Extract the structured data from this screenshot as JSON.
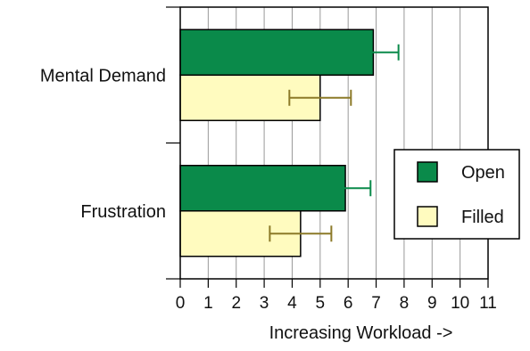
{
  "chart_data": {
    "type": "bar",
    "orientation": "horizontal",
    "categories": [
      "Mental Demand",
      "Frustration"
    ],
    "series": [
      {
        "name": "Open",
        "color": "#0a8a4a",
        "values": [
          6.9,
          5.9
        ],
        "error_low": [
          5.9,
          5.0
        ],
        "error_high": [
          7.8,
          6.8
        ]
      },
      {
        "name": "Filled",
        "color": "#fffbbf",
        "values": [
          5.0,
          4.3
        ],
        "error_low": [
          3.9,
          3.2
        ],
        "error_high": [
          6.1,
          5.4
        ]
      }
    ],
    "error_bar_colors": {
      "Open": "#0a8a4a",
      "Filled": "#8c7a28"
    },
    "title": "",
    "xlabel": "Increasing Workload ->",
    "ylabel": "",
    "xlim": [
      0,
      11
    ],
    "xticks": [
      "0",
      "1",
      "2",
      "3",
      "4",
      "5",
      "6",
      "7",
      "8",
      "9",
      "10",
      "11"
    ],
    "grid": "vertical",
    "legend_position": "right-center"
  }
}
